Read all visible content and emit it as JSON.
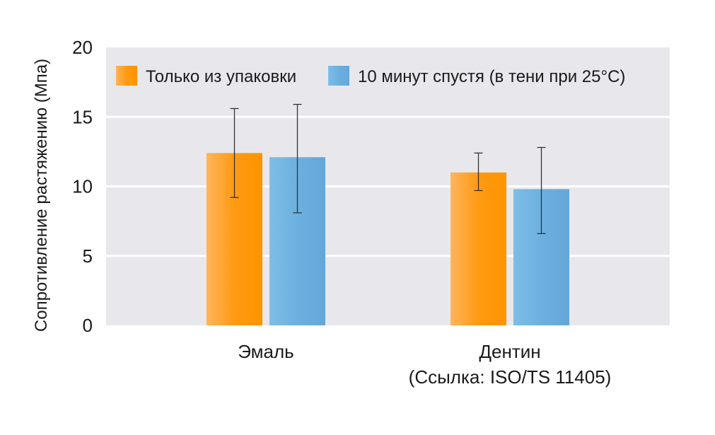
{
  "chart_data": {
    "type": "bar",
    "title": "",
    "ylabel": "Сопротивление растяжению (Мпа)",
    "xlabel": "",
    "ylim": [
      0,
      20
    ],
    "yticks": [
      0,
      5,
      10,
      15,
      20
    ],
    "grid": true,
    "legend_position": "top",
    "categories": [
      [
        "Эмаль"
      ],
      [
        "Дентин",
        "(Ссылка: ISO/TS 11405)"
      ]
    ],
    "series": [
      {
        "name": "Только из упаковки",
        "color": "#ff9300",
        "values": [
          12.4,
          11.0
        ],
        "error_low": [
          9.2,
          9.7
        ],
        "error_high": [
          15.6,
          12.4
        ]
      },
      {
        "name": "10 минут спустя (в тени при 25°C)",
        "color": "#66aadd",
        "values": [
          12.1,
          9.8
        ],
        "error_low": [
          8.1,
          6.6
        ],
        "error_high": [
          15.9,
          12.8
        ]
      }
    ]
  }
}
